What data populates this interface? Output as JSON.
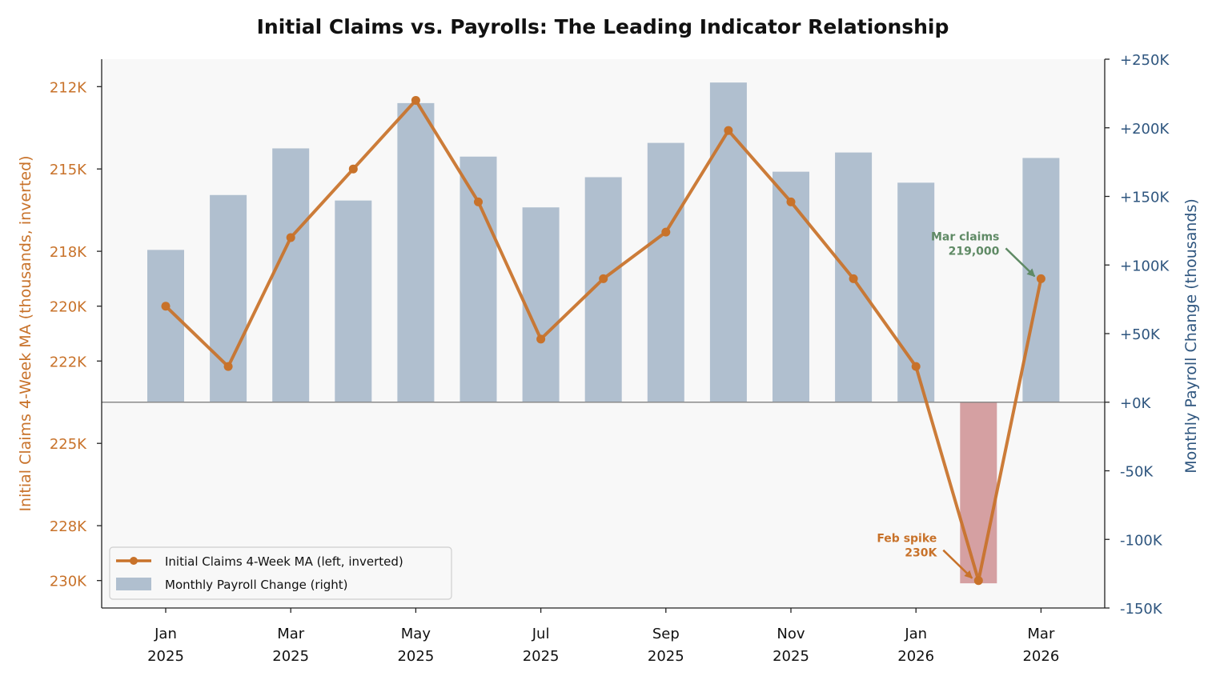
{
  "chart_data": {
    "type": "bar+line",
    "title": "Initial Claims vs. Payrolls: The Leading Indicator Relationship",
    "y_left_label": "Initial Claims 4-Week MA (thousands, inverted)",
    "y_right_label": "Monthly Payroll Change (thousands)",
    "y_left_ticks": [
      {
        "value": 212,
        "label": "212K"
      },
      {
        "value": 215,
        "label": "215K"
      },
      {
        "value": 218,
        "label": "218K"
      },
      {
        "value": 220,
        "label": "220K"
      },
      {
        "value": 222,
        "label": "222K"
      },
      {
        "value": 225,
        "label": "225K"
      },
      {
        "value": 228,
        "label": "228K"
      },
      {
        "value": 230,
        "label": "230K"
      }
    ],
    "y_right_ticks": [
      {
        "value": 250,
        "label": "+250K"
      },
      {
        "value": 200,
        "label": "+200K"
      },
      {
        "value": 150,
        "label": "+150K"
      },
      {
        "value": 100,
        "label": "+100K"
      },
      {
        "value": 50,
        "label": "+50K"
      },
      {
        "value": 0,
        "label": "+0K"
      },
      {
        "value": -50,
        "label": "-50K"
      },
      {
        "value": -100,
        "label": "-100K"
      },
      {
        "value": -150,
        "label": "-150K"
      }
    ],
    "x_tick_labels": [
      {
        "month": "Jan",
        "year": "2025"
      },
      {
        "month": "Mar",
        "year": "2025"
      },
      {
        "month": "May",
        "year": "2025"
      },
      {
        "month": "Jul",
        "year": "2025"
      },
      {
        "month": "Sep",
        "year": "2025"
      },
      {
        "month": "Nov",
        "year": "2025"
      },
      {
        "month": "Jan",
        "year": "2026"
      },
      {
        "month": "Mar",
        "year": "2026"
      }
    ],
    "months": [
      "2025-01",
      "2025-02",
      "2025-03",
      "2025-04",
      "2025-05",
      "2025-06",
      "2025-07",
      "2025-08",
      "2025-09",
      "2025-10",
      "2025-11",
      "2025-12",
      "2026-01",
      "2026-02",
      "2026-03"
    ],
    "series": [
      {
        "name": "Initial Claims 4-Week MA (left, inverted)",
        "axis": "left",
        "type": "line",
        "values": [
          220.0,
          222.2,
          217.5,
          215.0,
          212.5,
          216.2,
          221.2,
          219.0,
          217.3,
          213.6,
          216.2,
          219.0,
          222.2,
          230.0,
          219.0
        ]
      },
      {
        "name": "Monthly Payroll Change (right)",
        "axis": "right",
        "type": "bar",
        "values": [
          111,
          151,
          185,
          147,
          218,
          179,
          142,
          164,
          189,
          233,
          168,
          182,
          160,
          -132,
          178
        ]
      }
    ],
    "y_left_range_inverted": [
      211.0,
      231.0
    ],
    "y_right_range": [
      -150,
      250
    ],
    "annotations": [
      {
        "lines": [
          "Mar claims",
          "219,000"
        ],
        "target_month": "2026-03",
        "color": "#5f8a65"
      },
      {
        "lines": [
          "Feb spike",
          "230K"
        ],
        "target_month": "2026-02",
        "color": "#c8722a"
      }
    ],
    "legend": {
      "position": "bottom-left"
    },
    "colors": {
      "line": "#c8722a",
      "bar_positive": "#b0bfcf",
      "bar_negative": "#d5a0a2",
      "left_axis": "#c8722a",
      "right_axis": "#2f567f",
      "plot_bg": "#f8f8f8"
    }
  }
}
